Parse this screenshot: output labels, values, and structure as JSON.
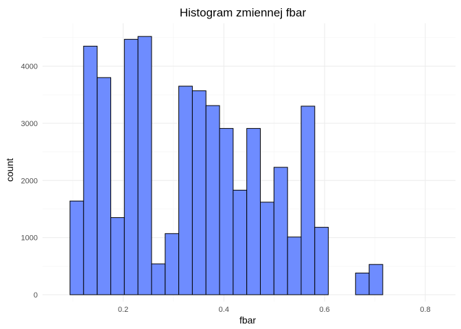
{
  "chart_data": {
    "type": "bar",
    "title": "Histogram zmiennej  fbar",
    "xlabel": "fbar",
    "ylabel": "count",
    "xlim": [
      0.04,
      0.86
    ],
    "ylim": [
      -120,
      4750
    ],
    "x_ticks": [
      0.2,
      0.4,
      0.6,
      0.8
    ],
    "x_tick_labels": [
      "0.2",
      "0.4",
      "0.6",
      "0.8"
    ],
    "y_ticks": [
      0,
      1000,
      2000,
      3000,
      4000
    ],
    "y_tick_labels": [
      "0",
      "1000",
      "2000",
      "3000",
      "4000"
    ],
    "grid": true,
    "legend": "none",
    "bin_width": 0.027,
    "bins": [
      {
        "x": 0.108,
        "count": 1640
      },
      {
        "x": 0.135,
        "count": 4350
      },
      {
        "x": 0.162,
        "count": 3800
      },
      {
        "x": 0.189,
        "count": 1350
      },
      {
        "x": 0.216,
        "count": 4470
      },
      {
        "x": 0.243,
        "count": 4520
      },
      {
        "x": 0.27,
        "count": 540
      },
      {
        "x": 0.297,
        "count": 1070
      },
      {
        "x": 0.324,
        "count": 3650
      },
      {
        "x": 0.351,
        "count": 3570
      },
      {
        "x": 0.378,
        "count": 3310
      },
      {
        "x": 0.405,
        "count": 2910
      },
      {
        "x": 0.432,
        "count": 1830
      },
      {
        "x": 0.459,
        "count": 2910
      },
      {
        "x": 0.486,
        "count": 1620
      },
      {
        "x": 0.513,
        "count": 2230
      },
      {
        "x": 0.54,
        "count": 1010
      },
      {
        "x": 0.567,
        "count": 3300
      },
      {
        "x": 0.594,
        "count": 1180
      },
      {
        "x": 0.621,
        "count": 0
      },
      {
        "x": 0.648,
        "count": 0
      },
      {
        "x": 0.675,
        "count": 380
      },
      {
        "x": 0.702,
        "count": 530
      },
      {
        "x": 0.729,
        "count": 0
      },
      {
        "x": 0.756,
        "count": 0
      },
      {
        "x": 0.783,
        "count": 0
      },
      {
        "x": 0.81,
        "count": 0
      },
      {
        "x": 0.837,
        "count": 0
      }
    ],
    "colors": {
      "fill": "#6e8cff",
      "stroke": "#000000",
      "grid_major": "#ebebeb",
      "grid_minor": "#f4f4f4",
      "background": "#ffffff"
    }
  }
}
